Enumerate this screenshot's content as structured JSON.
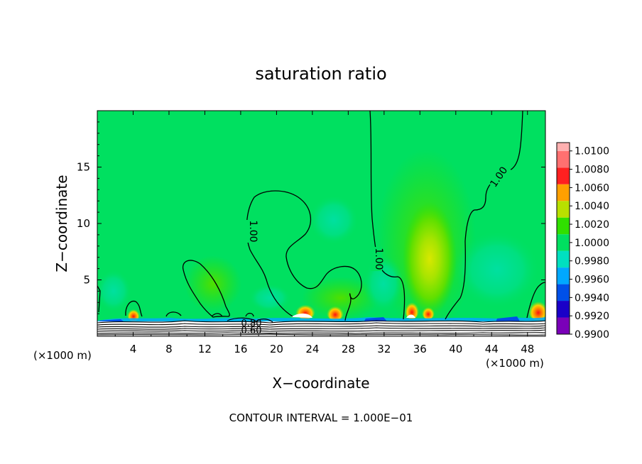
{
  "chart_data": {
    "type": "heatmap",
    "title": "saturation ratio",
    "xlabel": "X−coordinate",
    "ylabel": "Z−coordinate",
    "x_unit_left": "(×1000 m)",
    "x_unit_right": "(×1000 m)",
    "footer": "CONTOUR INTERVAL = 1.000E−01",
    "xlim": [
      0,
      50
    ],
    "ylim": [
      0,
      20
    ],
    "x_ticks": [
      4,
      8,
      12,
      16,
      20,
      24,
      28,
      32,
      36,
      40,
      44,
      48
    ],
    "y_ticks": [
      5,
      10,
      15
    ],
    "colorbar": {
      "levels": [
        "0.9900",
        "0.9920",
        "0.9940",
        "0.9960",
        "0.9980",
        "1.0000",
        "1.0020",
        "1.0040",
        "1.0060",
        "1.0080",
        "1.0100"
      ],
      "colors": [
        "#7a00b8",
        "#1a00c8",
        "#0050e8",
        "#00a8ff",
        "#00e0c0",
        "#00e060",
        "#30e000",
        "#b8e000",
        "#ffa000",
        "#ff2020",
        "#ff7070",
        "#ffb0b0"
      ],
      "min": 0.99,
      "max": 1.01
    },
    "contour_labels": [
      {
        "text": "1.00",
        "x": 17.5,
        "y": 9.2,
        "angle": 90
      },
      {
        "text": "1.00",
        "x": 30.7,
        "y": 6.5,
        "angle": 90
      },
      {
        "text": "1.00",
        "x": 44.8,
        "y": 14.2,
        "angle": -55
      },
      {
        "text": "0.80",
        "x": 17.3,
        "y": 1.05,
        "angle": 0
      },
      {
        "text": "0.60",
        "x": 17.3,
        "y": 0.55,
        "angle": 0
      }
    ],
    "background_value": 1.0
  }
}
